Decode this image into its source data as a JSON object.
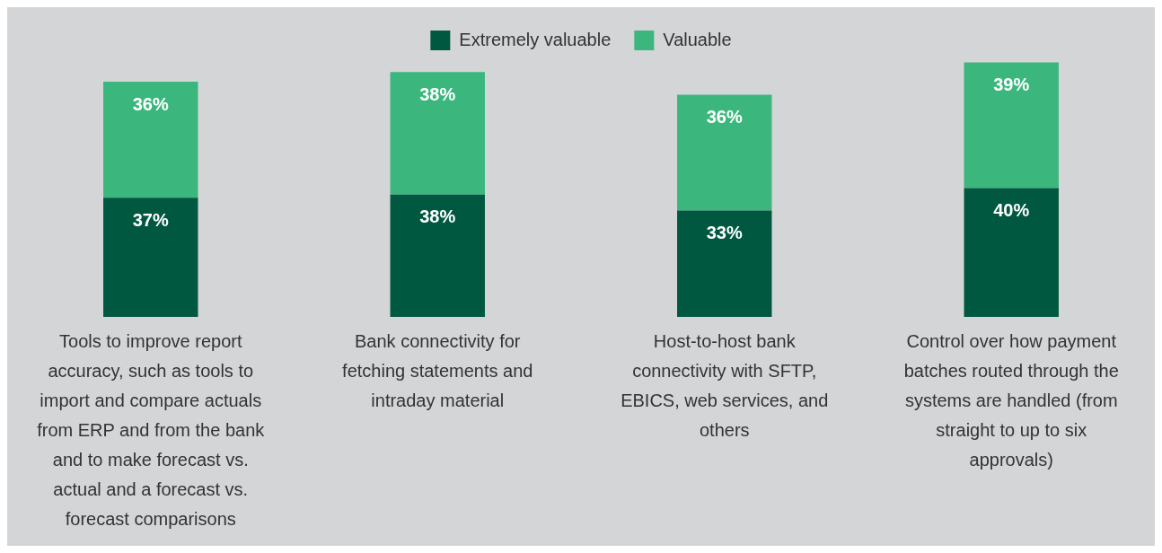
{
  "chart_data": {
    "type": "bar",
    "stacked": true,
    "legend": "top",
    "grid": false,
    "categories": [
      "Tools to improve report accuracy, such as tools to import and compare actuals from ERP and from the bank and to make forecast vs. actual and a forecast vs. forecast comparisons",
      "Bank connectivity for fetching statements and intraday material",
      "Host-to-host bank connectivity with SFTP, EBICS, web services, and others",
      "Control over how payment batches routed through the systems are handled (from straight to up to six approvals)"
    ],
    "series": [
      {
        "name": "Extremely valuable",
        "color": "#005840",
        "values": [
          37,
          38,
          33,
          40
        ],
        "value_labels": [
          "37%",
          "38%",
          "33%",
          "40%"
        ]
      },
      {
        "name": "Valuable",
        "color": "#3bb77e",
        "values": [
          36,
          38,
          36,
          39
        ],
        "value_labels": [
          "36%",
          "38%",
          "36%",
          "39%"
        ]
      }
    ]
  }
}
